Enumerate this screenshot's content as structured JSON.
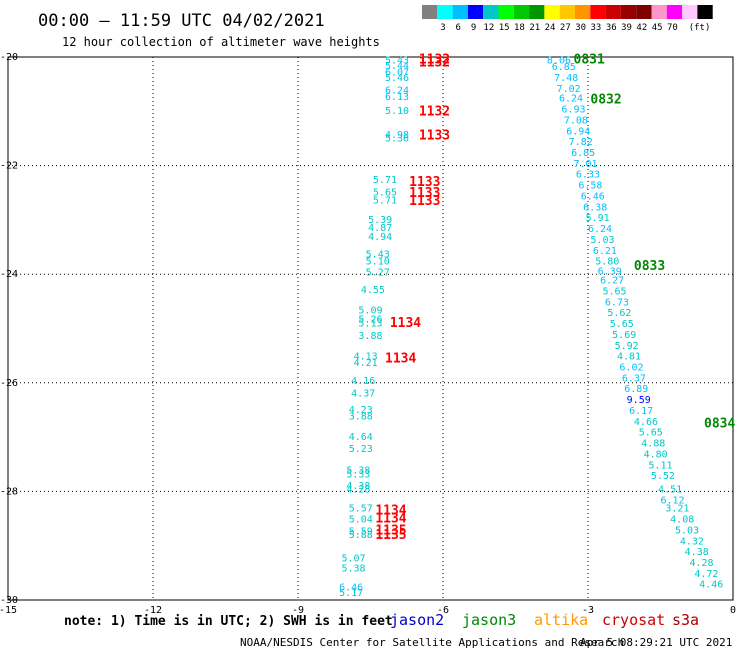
{
  "title": "00:00 – 11:59 UTC 04/02/2021",
  "subtitle": "12 hour collection of altimeter wave heights",
  "note": "note: 1) Time is in UTC; 2) SWH is in feet",
  "footer": "NOAA/NESDIS Center for Satellite Applications and Research",
  "timestamp": "Apr  5 08:29:21 UTC 2021",
  "legend": {
    "unit": "(ft)",
    "ticks": [
      "3",
      "6",
      "9",
      "12",
      "15",
      "18",
      "21",
      "24",
      "27",
      "30",
      "33",
      "36",
      "39",
      "42",
      "45",
      "70"
    ],
    "colors": [
      "#808080",
      "#00ffff",
      "#00bfff",
      "#0000ff",
      "#00c8c8",
      "#00ff00",
      "#00c800",
      "#009600",
      "#ffff00",
      "#ffc800",
      "#ff9600",
      "#ff0000",
      "#c80000",
      "#960000",
      "#800000",
      "#ff96c8",
      "#ff00ff",
      "#ffc8ff",
      "#000000"
    ]
  },
  "satellites": [
    {
      "name": "jason2",
      "color": "#0000cc"
    },
    {
      "name": "jason3",
      "color": "#008800"
    },
    {
      "name": "altika",
      "color": "#ff9900"
    },
    {
      "name": "cryosat",
      "color": "#cc0000"
    },
    {
      "name": "s3a",
      "color": "#aa0000"
    }
  ],
  "chart_data": {
    "type": "scatter",
    "xlim": [
      -15,
      0
    ],
    "ylim": [
      -30,
      -20
    ],
    "xticks": [
      "-15",
      "-12",
      "-9",
      "-6",
      "-3",
      "0"
    ],
    "yticks": [
      "-20",
      "-22",
      "-24",
      "-26",
      "-28",
      "-30"
    ],
    "grid": true,
    "labels": [
      {
        "x": -7.2,
        "y": -20.05,
        "text": "5.43",
        "c": "#00c8c8"
      },
      {
        "x": -7.2,
        "y": -20.15,
        "text": "5.44",
        "c": "#00bfff"
      },
      {
        "x": -7.2,
        "y": -20.27,
        "text": "6.07",
        "c": "#00bfff"
      },
      {
        "x": -7.2,
        "y": -20.37,
        "text": "5.46",
        "c": "#00c8c8"
      },
      {
        "x": -7.2,
        "y": -20.6,
        "text": "6.24",
        "c": "#00bfff"
      },
      {
        "x": -7.2,
        "y": -20.72,
        "text": "6.13",
        "c": "#00bfff"
      },
      {
        "x": -7.2,
        "y": -20.98,
        "text": "5.10",
        "c": "#00c8c8"
      },
      {
        "x": -7.2,
        "y": -21.42,
        "text": "4.98",
        "c": "#00bfff"
      },
      {
        "x": -7.2,
        "y": -21.48,
        "text": "5.36",
        "c": "#00c8c8"
      },
      {
        "x": -7.45,
        "y": -22.25,
        "text": "5.71",
        "c": "#00c8c8"
      },
      {
        "x": -7.45,
        "y": -22.48,
        "text": "5.65",
        "c": "#00c8c8"
      },
      {
        "x": -7.45,
        "y": -22.62,
        "text": "5.71",
        "c": "#00c8c8"
      },
      {
        "x": -7.55,
        "y": -22.98,
        "text": "5.39",
        "c": "#00c8c8"
      },
      {
        "x": -7.55,
        "y": -23.13,
        "text": "4.87",
        "c": "#00c8c8"
      },
      {
        "x": -7.55,
        "y": -23.3,
        "text": "4.94",
        "c": "#00c8c8"
      },
      {
        "x": -7.6,
        "y": -23.62,
        "text": "5.43",
        "c": "#00c8c8"
      },
      {
        "x": -7.6,
        "y": -23.75,
        "text": "5.10",
        "c": "#00c8c8"
      },
      {
        "x": -7.6,
        "y": -23.95,
        "text": "5.27",
        "c": "#00c8c8"
      },
      {
        "x": -7.7,
        "y": -24.27,
        "text": "4.55",
        "c": "#00c8c8"
      },
      {
        "x": -7.75,
        "y": -24.65,
        "text": "5.09",
        "c": "#00c8c8"
      },
      {
        "x": -7.75,
        "y": -24.82,
        "text": "5.26",
        "c": "#00c8c8"
      },
      {
        "x": -7.75,
        "y": -24.89,
        "text": "5.13",
        "c": "#00c8c8"
      },
      {
        "x": -7.75,
        "y": -25.12,
        "text": "3.88",
        "c": "#00c8c8"
      },
      {
        "x": -7.85,
        "y": -25.5,
        "text": "4.13",
        "c": "#00c8c8"
      },
      {
        "x": -7.85,
        "y": -25.62,
        "text": "4.21",
        "c": "#00c8c8"
      },
      {
        "x": -7.9,
        "y": -25.95,
        "text": "4.16",
        "c": "#00c8c8"
      },
      {
        "x": -7.9,
        "y": -26.18,
        "text": "4.37",
        "c": "#00c8c8"
      },
      {
        "x": -7.95,
        "y": -26.48,
        "text": "4.23",
        "c": "#00c8c8"
      },
      {
        "x": -7.95,
        "y": -26.6,
        "text": "3.88",
        "c": "#00c8c8"
      },
      {
        "x": -7.95,
        "y": -26.98,
        "text": "4.64",
        "c": "#00c8c8"
      },
      {
        "x": -7.95,
        "y": -27.2,
        "text": "5.23",
        "c": "#00c8c8"
      },
      {
        "x": -8.0,
        "y": -27.6,
        "text": "5.38",
        "c": "#00c8c8"
      },
      {
        "x": -8.0,
        "y": -27.67,
        "text": "5.33",
        "c": "#00c8c8"
      },
      {
        "x": -8.0,
        "y": -27.88,
        "text": "4.38",
        "c": "#00c8c8"
      },
      {
        "x": -8.0,
        "y": -27.95,
        "text": "4.28",
        "c": "#00c8c8"
      },
      {
        "x": -7.95,
        "y": -28.3,
        "text": "5.57",
        "c": "#00c8c8"
      },
      {
        "x": -7.95,
        "y": -28.5,
        "text": "5.04",
        "c": "#00c8c8"
      },
      {
        "x": -7.95,
        "y": -28.72,
        "text": "5.59",
        "c": "#00c8c8"
      },
      {
        "x": -7.95,
        "y": -28.78,
        "text": "5.88",
        "c": "#00c8c8"
      },
      {
        "x": -8.1,
        "y": -29.22,
        "text": "5.07",
        "c": "#00c8c8"
      },
      {
        "x": -8.1,
        "y": -29.4,
        "text": "5.38",
        "c": "#00c8c8"
      },
      {
        "x": -8.15,
        "y": -29.75,
        "text": "6.46",
        "c": "#00bfff"
      },
      {
        "x": -8.15,
        "y": -29.85,
        "text": "5.17",
        "c": "#00c8c8"
      },
      {
        "x": -6.5,
        "y": -20.05,
        "text": "1132",
        "c": "#ff0000",
        "pass": true
      },
      {
        "x": -6.5,
        "y": -20.1,
        "text": "1132",
        "c": "#ff0000",
        "pass": true
      },
      {
        "x": -6.5,
        "y": -21.0,
        "text": "1132",
        "c": "#ff0000",
        "pass": true
      },
      {
        "x": -6.5,
        "y": -21.45,
        "text": "1133",
        "c": "#ff0000",
        "pass": true
      },
      {
        "x": -6.7,
        "y": -22.3,
        "text": "1133",
        "c": "#ff0000",
        "pass": true
      },
      {
        "x": -6.7,
        "y": -22.5,
        "text": "1133",
        "c": "#ff0000",
        "pass": true
      },
      {
        "x": -6.7,
        "y": -22.65,
        "text": "1133",
        "c": "#ff0000",
        "pass": true
      },
      {
        "x": -7.1,
        "y": -24.9,
        "text": "1134",
        "c": "#ff0000",
        "pass": true
      },
      {
        "x": -7.2,
        "y": -25.55,
        "text": "1134",
        "c": "#ff0000",
        "pass": true
      },
      {
        "x": -7.4,
        "y": -28.35,
        "text": "1134",
        "c": "#ff0000",
        "pass": true
      },
      {
        "x": -7.4,
        "y": -28.5,
        "text": "1134",
        "c": "#ff0000",
        "pass": true
      },
      {
        "x": -7.4,
        "y": -28.72,
        "text": "1135",
        "c": "#ff0000",
        "pass": true
      },
      {
        "x": -7.4,
        "y": -28.8,
        "text": "1135",
        "c": "#ff0000",
        "pass": true
      },
      {
        "x": -3.85,
        "y": -20.05,
        "text": "8.06",
        "c": "#00bfff"
      },
      {
        "x": -3.75,
        "y": -20.17,
        "text": "6.85",
        "c": "#00bfff"
      },
      {
        "x": -3.7,
        "y": -20.37,
        "text": "7.48",
        "c": "#00bfff"
      },
      {
        "x": -3.65,
        "y": -20.57,
        "text": "7.02",
        "c": "#00bfff"
      },
      {
        "x": -3.6,
        "y": -20.75,
        "text": "6.24",
        "c": "#00bfff"
      },
      {
        "x": -3.55,
        "y": -20.95,
        "text": "6.93",
        "c": "#00bfff"
      },
      {
        "x": -3.5,
        "y": -21.15,
        "text": "7.08",
        "c": "#00bfff"
      },
      {
        "x": -3.45,
        "y": -21.35,
        "text": "6.94",
        "c": "#00bfff"
      },
      {
        "x": -3.4,
        "y": -21.55,
        "text": "7.82",
        "c": "#00bfff"
      },
      {
        "x": -3.35,
        "y": -21.75,
        "text": "6.85",
        "c": "#00bfff"
      },
      {
        "x": -3.3,
        "y": -21.95,
        "text": "7.01",
        "c": "#00bfff"
      },
      {
        "x": -3.25,
        "y": -22.15,
        "text": "6.33",
        "c": "#00bfff"
      },
      {
        "x": -3.2,
        "y": -22.35,
        "text": "6.58",
        "c": "#00bfff"
      },
      {
        "x": -3.15,
        "y": -22.55,
        "text": "6.46",
        "c": "#00bfff"
      },
      {
        "x": -3.1,
        "y": -22.75,
        "text": "6.38",
        "c": "#00bfff"
      },
      {
        "x": -3.05,
        "y": -22.95,
        "text": "5.91",
        "c": "#00c8c8"
      },
      {
        "x": -3.0,
        "y": -23.15,
        "text": "6.24",
        "c": "#00bfff"
      },
      {
        "x": -2.95,
        "y": -23.35,
        "text": "5.03",
        "c": "#00c8c8"
      },
      {
        "x": -2.9,
        "y": -23.55,
        "text": "6.21",
        "c": "#00bfff"
      },
      {
        "x": -2.85,
        "y": -23.75,
        "text": "5.80",
        "c": "#00c8c8"
      },
      {
        "x": -2.8,
        "y": -23.93,
        "text": "6.39",
        "c": "#00bfff"
      },
      {
        "x": -2.75,
        "y": -24.1,
        "text": "6.27",
        "c": "#00bfff"
      },
      {
        "x": -2.7,
        "y": -24.3,
        "text": "5.65",
        "c": "#00c8c8"
      },
      {
        "x": -2.65,
        "y": -24.5,
        "text": "6.73",
        "c": "#00bfff"
      },
      {
        "x": -2.6,
        "y": -24.7,
        "text": "5.62",
        "c": "#00c8c8"
      },
      {
        "x": -2.55,
        "y": -24.9,
        "text": "5.65",
        "c": "#00c8c8"
      },
      {
        "x": -2.5,
        "y": -25.1,
        "text": "5.69",
        "c": "#00c8c8"
      },
      {
        "x": -2.45,
        "y": -25.3,
        "text": "5.92",
        "c": "#00c8c8"
      },
      {
        "x": -2.4,
        "y": -25.5,
        "text": "4.81",
        "c": "#00c8c8"
      },
      {
        "x": -2.35,
        "y": -25.7,
        "text": "6.02",
        "c": "#00bfff"
      },
      {
        "x": -2.3,
        "y": -25.9,
        "text": "6.37",
        "c": "#00bfff"
      },
      {
        "x": -2.25,
        "y": -26.1,
        "text": "6.89",
        "c": "#00bfff"
      },
      {
        "x": -2.2,
        "y": -26.3,
        "text": "9.59",
        "c": "#0000ff"
      },
      {
        "x": -2.15,
        "y": -26.5,
        "text": "6.17",
        "c": "#00bfff"
      },
      {
        "x": -2.05,
        "y": -26.7,
        "text": "4.66",
        "c": "#00c8c8"
      },
      {
        "x": -1.95,
        "y": -26.9,
        "text": "5.65",
        "c": "#00c8c8"
      },
      {
        "x": -1.9,
        "y": -27.1,
        "text": "4.88",
        "c": "#00c8c8"
      },
      {
        "x": -1.85,
        "y": -27.3,
        "text": "4.80",
        "c": "#00c8c8"
      },
      {
        "x": -1.75,
        "y": -27.5,
        "text": "5.11",
        "c": "#00c8c8"
      },
      {
        "x": -1.7,
        "y": -27.7,
        "text": "5.52",
        "c": "#00c8c8"
      },
      {
        "x": -1.55,
        "y": -27.95,
        "text": "4.51",
        "c": "#00c8c8"
      },
      {
        "x": -1.5,
        "y": -28.15,
        "text": "6.12",
        "c": "#00bfff"
      },
      {
        "x": -1.4,
        "y": -28.3,
        "text": "3.21",
        "c": "#00c8c8"
      },
      {
        "x": -1.3,
        "y": -28.5,
        "text": "4.08",
        "c": "#00c8c8"
      },
      {
        "x": -1.2,
        "y": -28.7,
        "text": "5.03",
        "c": "#00c8c8"
      },
      {
        "x": -1.1,
        "y": -28.9,
        "text": "4.32",
        "c": "#00c8c8"
      },
      {
        "x": -1.0,
        "y": -29.1,
        "text": "4.38",
        "c": "#00c8c8"
      },
      {
        "x": -0.9,
        "y": -29.3,
        "text": "4.28",
        "c": "#00c8c8"
      },
      {
        "x": -0.8,
        "y": -29.5,
        "text": "4.72",
        "c": "#00c8c8"
      },
      {
        "x": -0.7,
        "y": -29.7,
        "text": "4.46",
        "c": "#00c8c8"
      },
      {
        "x": -3.3,
        "y": -20.05,
        "text": "0831",
        "c": "#008800",
        "pass": true
      },
      {
        "x": -2.95,
        "y": -20.78,
        "text": "0832",
        "c": "#008800",
        "pass": true
      },
      {
        "x": -2.05,
        "y": -23.85,
        "text": "0833",
        "c": "#008800",
        "pass": true
      },
      {
        "x": -0.6,
        "y": -26.75,
        "text": "0834",
        "c": "#008800",
        "pass": true
      }
    ]
  }
}
